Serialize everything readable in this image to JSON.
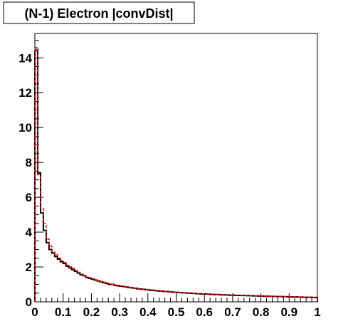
{
  "chart_data": {
    "type": "line",
    "title": "(N-1) Electron |convDist|",
    "xlabel": "",
    "ylabel": "",
    "xlim": [
      0,
      1
    ],
    "ylim": [
      0,
      15.4
    ],
    "grid": false,
    "xticks": [
      "0",
      "0.1",
      "0.2",
      "0.3",
      "0.4",
      "0.5",
      "0.6",
      "0.7",
      "0.8",
      "0.9",
      "1"
    ],
    "yticks": [
      "0",
      "2",
      "4",
      "6",
      "8",
      "10",
      "12",
      "14"
    ],
    "bin_width": 0.01,
    "series": [
      {
        "style": "solid",
        "color": "#000000",
        "values": [
          14.4,
          7.4,
          5.1,
          4.1,
          3.4,
          3.0,
          2.8,
          2.6,
          2.45,
          2.3,
          2.2,
          2.05,
          1.95,
          1.85,
          1.75,
          1.65,
          1.55,
          1.5,
          1.4,
          1.35,
          1.3,
          1.25,
          1.2,
          1.15,
          1.1,
          1.05,
          1.0,
          1.0,
          0.95,
          0.92,
          0.9,
          0.88,
          0.85,
          0.82,
          0.8,
          0.78,
          0.75,
          0.73,
          0.72,
          0.7,
          0.68,
          0.66,
          0.65,
          0.63,
          0.62,
          0.6,
          0.59,
          0.58,
          0.56,
          0.55,
          0.54,
          0.53,
          0.52,
          0.51,
          0.5,
          0.49,
          0.48,
          0.47,
          0.46,
          0.45,
          0.45,
          0.44,
          0.43,
          0.42,
          0.42,
          0.41,
          0.4,
          0.4,
          0.39,
          0.38,
          0.38,
          0.37,
          0.37,
          0.36,
          0.36,
          0.35,
          0.35,
          0.34,
          0.34,
          0.33,
          0.33,
          0.32,
          0.32,
          0.31,
          0.31,
          0.3,
          0.3,
          0.3,
          0.29,
          0.29,
          0.28,
          0.28,
          0.28,
          0.27,
          0.27,
          0.26,
          0.26,
          0.26,
          0.25,
          0.25
        ]
      },
      {
        "style": "dashed",
        "color": "#ff0000",
        "values": [
          14.6,
          7.3,
          5.4,
          4.5,
          3.6,
          3.2,
          2.9,
          2.7,
          2.5,
          2.35,
          2.25,
          2.1,
          2.0,
          1.9,
          1.8,
          1.7,
          1.6,
          1.52,
          1.45,
          1.38,
          1.32,
          1.26,
          1.22,
          1.17,
          1.12,
          1.08,
          1.04,
          1.0,
          0.97,
          0.94,
          0.91,
          0.88,
          0.86,
          0.83,
          0.81,
          0.79,
          0.77,
          0.75,
          0.73,
          0.71,
          0.69,
          0.68,
          0.66,
          0.64,
          0.63,
          0.61,
          0.6,
          0.59,
          0.57,
          0.56,
          0.55,
          0.54,
          0.53,
          0.52,
          0.51,
          0.5,
          0.49,
          0.48,
          0.47,
          0.46,
          0.46,
          0.45,
          0.44,
          0.43,
          0.43,
          0.42,
          0.41,
          0.41,
          0.4,
          0.39,
          0.39,
          0.38,
          0.38,
          0.37,
          0.37,
          0.36,
          0.36,
          0.35,
          0.35,
          0.34,
          0.34,
          0.33,
          0.33,
          0.32,
          0.32,
          0.31,
          0.31,
          0.31,
          0.3,
          0.3,
          0.29,
          0.29,
          0.29,
          0.28,
          0.28,
          0.27,
          0.27,
          0.27,
          0.26,
          0.26
        ]
      }
    ]
  }
}
